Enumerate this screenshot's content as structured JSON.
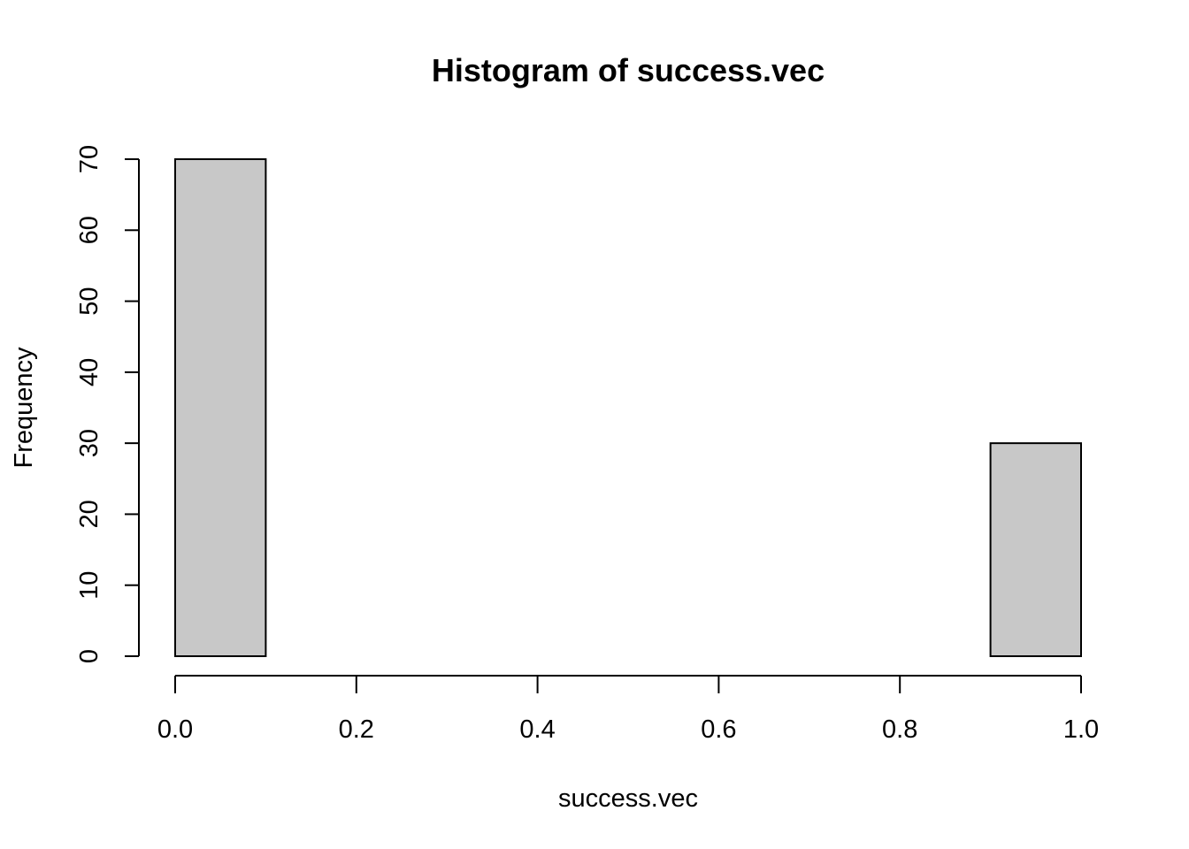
{
  "chart_data": {
    "type": "bar",
    "title": "Histogram of success.vec",
    "xlabel": "success.vec",
    "ylabel": "Frequency",
    "bins": [
      {
        "start": 0.0,
        "end": 0.1,
        "count": 70
      },
      {
        "start": 0.1,
        "end": 0.2,
        "count": 0
      },
      {
        "start": 0.2,
        "end": 0.3,
        "count": 0
      },
      {
        "start": 0.3,
        "end": 0.4,
        "count": 0
      },
      {
        "start": 0.4,
        "end": 0.5,
        "count": 0
      },
      {
        "start": 0.5,
        "end": 0.6,
        "count": 0
      },
      {
        "start": 0.6,
        "end": 0.7,
        "count": 0
      },
      {
        "start": 0.7,
        "end": 0.8,
        "count": 0
      },
      {
        "start": 0.8,
        "end": 0.9,
        "count": 0
      },
      {
        "start": 0.9,
        "end": 1.0,
        "count": 30
      }
    ],
    "xlim": [
      0,
      1
    ],
    "ylim": [
      0,
      70
    ],
    "x_ticks": [
      0,
      0.2,
      0.4,
      0.6,
      0.8,
      1
    ],
    "x_tick_labels": [
      "0.0",
      "0.2",
      "0.4",
      "0.6",
      "0.8",
      "1.0"
    ],
    "y_ticks": [
      0,
      10,
      20,
      30,
      40,
      50,
      60,
      70
    ],
    "y_tick_labels": [
      "0",
      "10",
      "20",
      "30",
      "40",
      "50",
      "60",
      "70"
    ],
    "bar_color": "#c8c8c8",
    "grid": false,
    "legend": "none"
  }
}
